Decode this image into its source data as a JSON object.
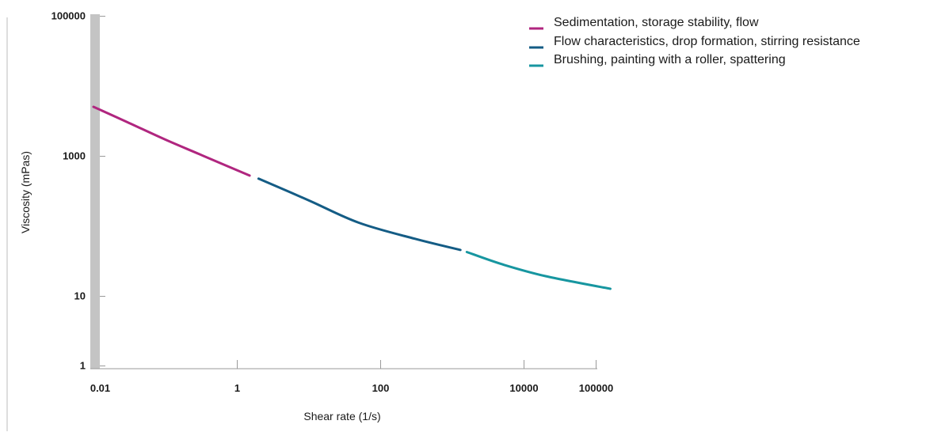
{
  "chart_data": {
    "type": "line",
    "title": "",
    "xlabel": "Shear rate (1/s)",
    "ylabel": "Viscosity (mPas)",
    "x_scale": "log",
    "y_scale": "log",
    "xlim": [
      0.01,
      100000
    ],
    "ylim": [
      1,
      100000
    ],
    "x_ticks": [
      {
        "value": 0.01,
        "label": "0.01"
      },
      {
        "value": 1,
        "label": "1"
      },
      {
        "value": 100,
        "label": "100"
      },
      {
        "value": 10000,
        "label": "10000"
      },
      {
        "value": 100000,
        "label": "100000"
      }
    ],
    "y_ticks": [
      {
        "value": 1,
        "label": "1"
      },
      {
        "value": 10,
        "label": "10"
      },
      {
        "value": 1000,
        "label": "1000"
      },
      {
        "value": 100000,
        "label": "100000"
      }
    ],
    "grid": false,
    "legend_position": "top-right",
    "series": [
      {
        "name": "Sedimentation, storage stability, flow",
        "color": "#b0267f",
        "x": [
          0.01,
          0.03,
          0.1,
          0.3,
          1.5
        ],
        "y": [
          5000,
          3000,
          1700,
          1050,
          520
        ]
      },
      {
        "name": "Flow characteristics, drop formation, stirring resistance",
        "color": "#145c85",
        "x": [
          2,
          10,
          50,
          300,
          1300
        ],
        "y": [
          470,
          230,
          110,
          65,
          45
        ]
      },
      {
        "name": "Brushing, painting with a roller, spattering",
        "color": "#1796a0",
        "x": [
          1600,
          5000,
          20000,
          160000
        ],
        "y": [
          42,
          28,
          19,
          12.5
        ]
      }
    ]
  }
}
